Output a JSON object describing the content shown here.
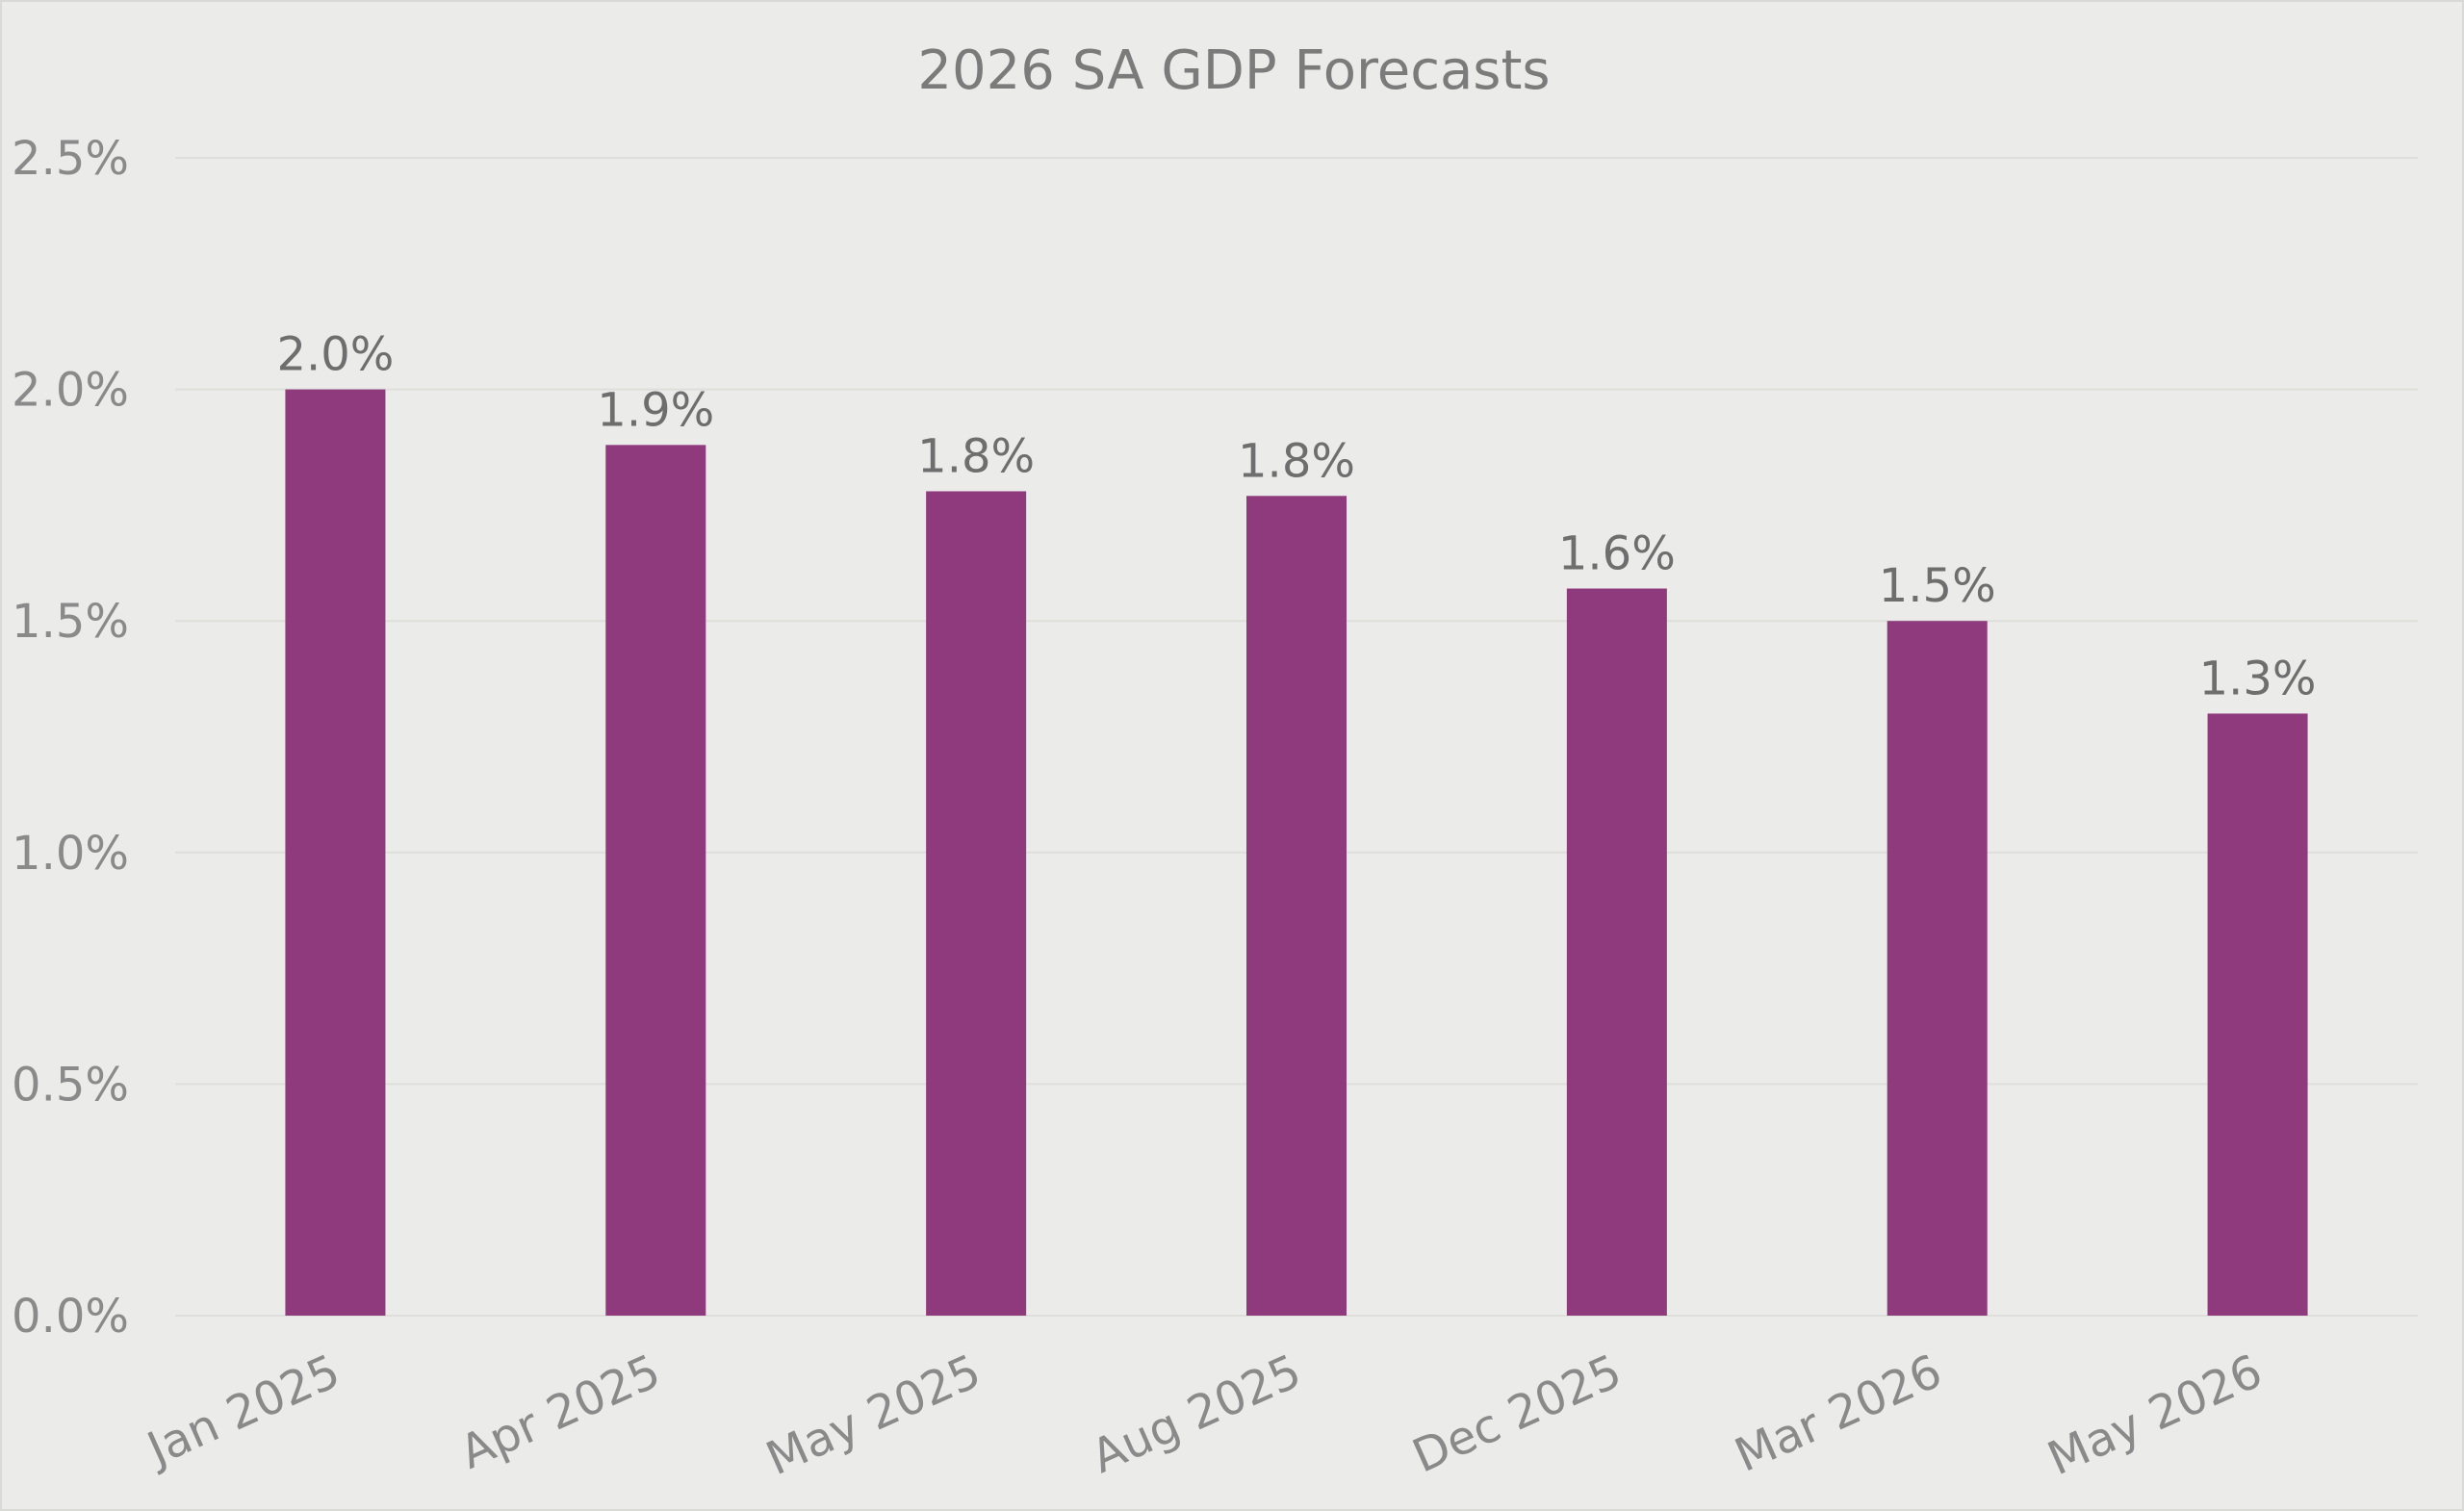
{
  "chart_data": {
    "type": "bar",
    "title": "2026 SA GDP Forecasts",
    "xlabel": "",
    "ylabel": "",
    "categories": [
      "Jan 2025",
      "Apr 2025",
      "May 2025",
      "Aug 2025",
      "Dec 2025",
      "Mar 2026",
      "May 2026"
    ],
    "values": [
      2.0,
      1.88,
      1.78,
      1.77,
      1.57,
      1.5,
      1.3
    ],
    "data_labels": [
      "2.0%",
      "1.9%",
      "1.8%",
      "1.8%",
      "1.6%",
      "1.5%",
      "1.3%"
    ],
    "ylim": [
      0,
      2.5
    ],
    "y_ticks": [
      0,
      0.5,
      1.0,
      1.5,
      2.0,
      2.5
    ],
    "y_tick_labels": [
      "0.0%",
      "0.5%",
      "1.0%",
      "1.5%",
      "2.0%",
      "2.5%"
    ],
    "grid": true,
    "legend": "none",
    "bar_color": "#8f3a7c"
  }
}
